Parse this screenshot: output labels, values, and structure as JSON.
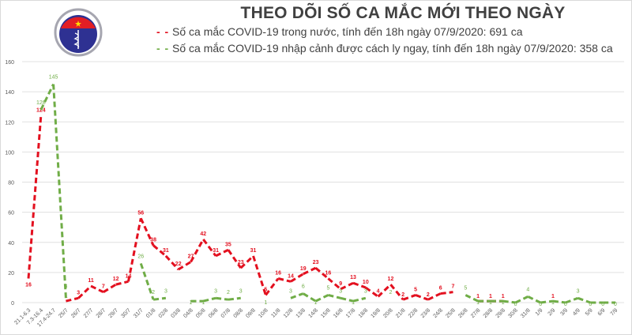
{
  "logo": {
    "text_top": "BỘ Y TẾ",
    "text_bottom": "MINISTRY OF HEALTH"
  },
  "chart_data": {
    "type": "line",
    "title": "THEO DÕI SỐ CA MẮC MỚI THEO NGÀY",
    "ylim": [
      0,
      160
    ],
    "yticks": [
      0,
      20,
      40,
      60,
      80,
      100,
      120,
      140,
      160
    ],
    "grid": true,
    "legend_position": "top",
    "categories": [
      "21.1-6.3",
      "7.3-16.4",
      "17.4-24.7",
      "25/7",
      "26/7",
      "27/7",
      "28/7",
      "29/7",
      "30/7",
      "31/7",
      "01/8",
      "02/8",
      "03/8",
      "04/8",
      "05/8",
      "06/8",
      "07/8",
      "08/8",
      "09/8",
      "10/8",
      "11/8",
      "12/8",
      "13/8",
      "14/8",
      "15/8",
      "16/8",
      "17/8",
      "18/8",
      "19/8",
      "20/8",
      "21/8",
      "22/8",
      "23/8",
      "24/8",
      "25/8",
      "26/8",
      "27/8",
      "28/8",
      "29/8",
      "30/8",
      "31/8",
      "1/9",
      "2/9",
      "3/9",
      "4/9",
      "5/9",
      "6/9",
      "7/9"
    ],
    "series": [
      {
        "name": "Số ca mắc COVID-19 trong nước, tính đến 18h ngày 07/9/2020: 691 ca",
        "color": "#e3101f",
        "values": [
          16,
          124,
          null,
          1,
          3,
          11,
          7,
          12,
          14,
          56,
          38,
          31,
          22,
          27,
          42,
          31,
          35,
          23,
          31,
          5,
          16,
          14,
          19,
          23,
          16,
          9,
          13,
          10,
          4,
          12,
          2,
          5,
          2,
          6,
          7,
          null,
          1,
          1,
          1,
          null,
          null,
          null,
          1,
          null,
          null,
          null,
          null,
          null
        ]
      },
      {
        "name": "Số ca mắc COVID-19 nhập cảnh được cách ly ngay, tính đến 18h ngày 07/9/2020: 358 ca",
        "color": "#70ad47",
        "values": [
          null,
          128,
          145,
          3,
          null,
          null,
          null,
          null,
          null,
          26,
          2,
          3,
          null,
          1,
          1,
          3,
          2,
          3,
          null,
          1,
          null,
          3,
          6,
          1,
          5,
          3,
          1,
          3,
          null,
          2,
          null,
          null,
          null,
          null,
          null,
          5,
          1,
          1,
          1,
          0,
          4,
          0,
          1,
          0,
          3,
          0,
          0,
          0
        ]
      }
    ]
  }
}
